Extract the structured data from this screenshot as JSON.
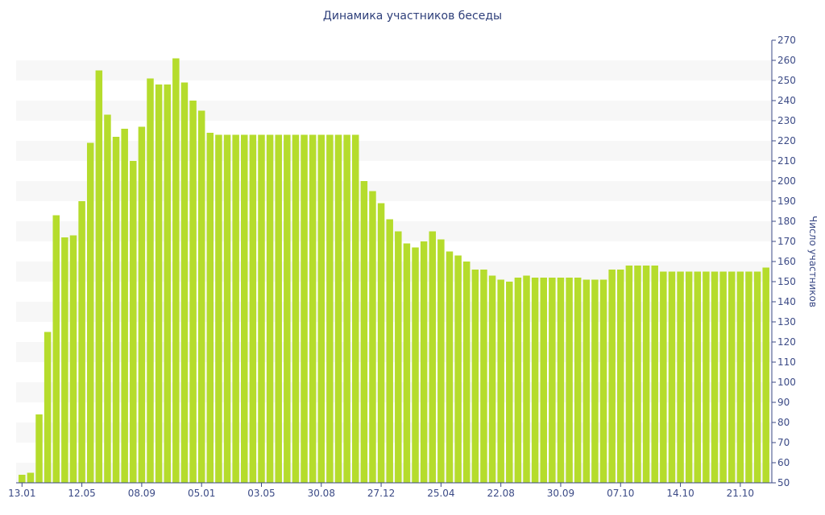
{
  "chart_data": {
    "type": "bar",
    "title": "Динамика участников беседы",
    "ylabel": "Число участников",
    "ylim": [
      50,
      270
    ],
    "yticks": [
      50,
      60,
      70,
      80,
      90,
      100,
      110,
      120,
      130,
      140,
      150,
      160,
      170,
      180,
      190,
      200,
      210,
      220,
      230,
      240,
      250,
      260,
      270
    ],
    "x_tick_labels": [
      {
        "index": 0,
        "label": "13.01"
      },
      {
        "index": 7,
        "label": "12.05"
      },
      {
        "index": 14,
        "label": "08.09"
      },
      {
        "index": 21,
        "label": "05.01"
      },
      {
        "index": 28,
        "label": "03.05"
      },
      {
        "index": 35,
        "label": "30.08"
      },
      {
        "index": 42,
        "label": "27.12"
      },
      {
        "index": 49,
        "label": "25.04"
      },
      {
        "index": 56,
        "label": "22.08"
      },
      {
        "index": 63,
        "label": "30.09"
      },
      {
        "index": 70,
        "label": "07.10"
      },
      {
        "index": 77,
        "label": "14.10"
      },
      {
        "index": 84,
        "label": "21.10"
      }
    ],
    "values": [
      54,
      55,
      84,
      125,
      183,
      172,
      173,
      190,
      219,
      255,
      233,
      222,
      226,
      210,
      227,
      251,
      248,
      248,
      261,
      249,
      240,
      235,
      224,
      223,
      223,
      223,
      223,
      223,
      223,
      223,
      223,
      223,
      223,
      223,
      223,
      223,
      223,
      223,
      223,
      223,
      200,
      195,
      189,
      181,
      175,
      169,
      167,
      170,
      175,
      171,
      165,
      163,
      160,
      156,
      156,
      153,
      151,
      150,
      152,
      153,
      152,
      152,
      152,
      152,
      152,
      152,
      151,
      151,
      151,
      156,
      156,
      158,
      158,
      158,
      158,
      155,
      155,
      155,
      155,
      155,
      155,
      155,
      155,
      155,
      155,
      155,
      155,
      157
    ],
    "colors": {
      "bar": "#b5dc2c",
      "axis": "#3b4a86",
      "band": "#f7f7f7"
    }
  }
}
